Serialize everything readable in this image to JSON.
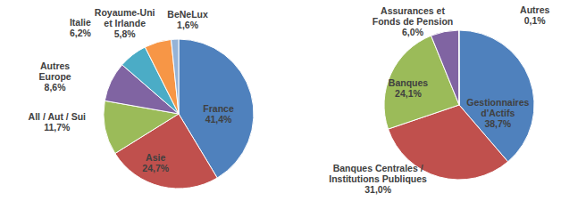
{
  "chart_data": [
    {
      "type": "pie",
      "categories": [
        "France",
        "Asie",
        "All / Aut / Sui",
        "Autres Europe",
        "Italie",
        "Royaume-Uni et Irlande",
        "BeNeLux"
      ],
      "values": [
        41.4,
        24.7,
        11.7,
        8.6,
        6.2,
        5.8,
        1.6
      ],
      "value_labels": [
        "41,4%",
        "24,7%",
        "11,7%",
        "8,6%",
        "6,2%",
        "5,8%",
        "1,6%"
      ],
      "colors": [
        "#4F81BD",
        "#C0504D",
        "#9BBB59",
        "#8064A2",
        "#4BACC6",
        "#F79646",
        "#95B3D7"
      ],
      "data_labels": true
    },
    {
      "type": "pie",
      "categories": [
        "Gestionnaires d'Actifs",
        "Banques Centrales / Institutions Publiques",
        "Banques",
        "Assurances et Fonds de Pension",
        "Autres"
      ],
      "values": [
        38.7,
        31.0,
        24.1,
        6.0,
        0.1
      ],
      "value_labels": [
        "38,7%",
        "31,0%",
        "24,1%",
        "6,0%",
        "0,1%"
      ],
      "colors": [
        "#4F81BD",
        "#C0504D",
        "#9BBB59",
        "#8064A2",
        "#4BACC6"
      ],
      "data_labels": true
    }
  ]
}
